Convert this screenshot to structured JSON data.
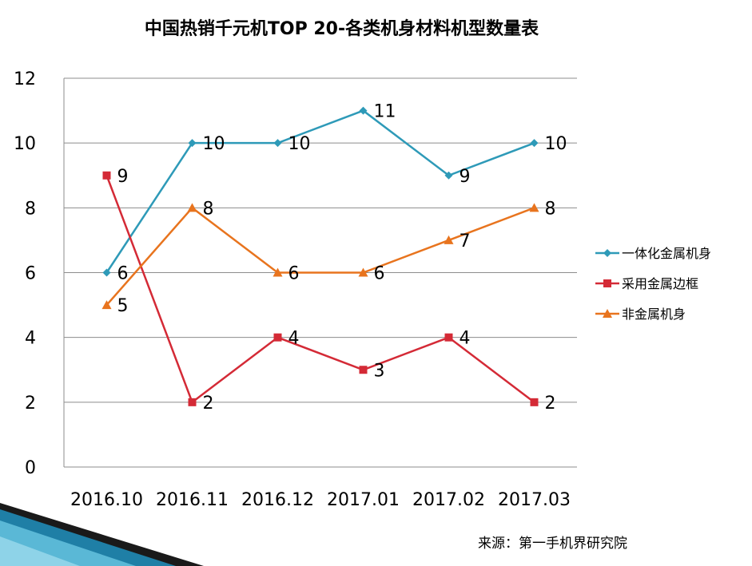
{
  "chart_data": {
    "type": "line",
    "title": "中国热销千元机TOP 20-各类机身材料机型数量表",
    "categories": [
      "2016.10",
      "2016.11",
      "2016.12",
      "2017.01",
      "2017.02",
      "2017.03"
    ],
    "ylim": [
      0,
      12
    ],
    "yticks": [
      0,
      2,
      4,
      6,
      8,
      10,
      12
    ],
    "grid": true,
    "legend_position": "right",
    "series": [
      {
        "name": "一体化金属机身",
        "values": [
          6,
          10,
          10,
          11,
          9,
          10
        ],
        "color": "#2E9AB8",
        "marker": "diamond"
      },
      {
        "name": "采用金属边框",
        "values": [
          9,
          2,
          4,
          3,
          4,
          2
        ],
        "color": "#D42A36",
        "marker": "square"
      },
      {
        "name": "非金属机身",
        "values": [
          5,
          8,
          6,
          6,
          7,
          8
        ],
        "color": "#E8741E",
        "marker": "triangle"
      }
    ]
  },
  "footer": {
    "source": "来源：第一手机界研究院"
  }
}
